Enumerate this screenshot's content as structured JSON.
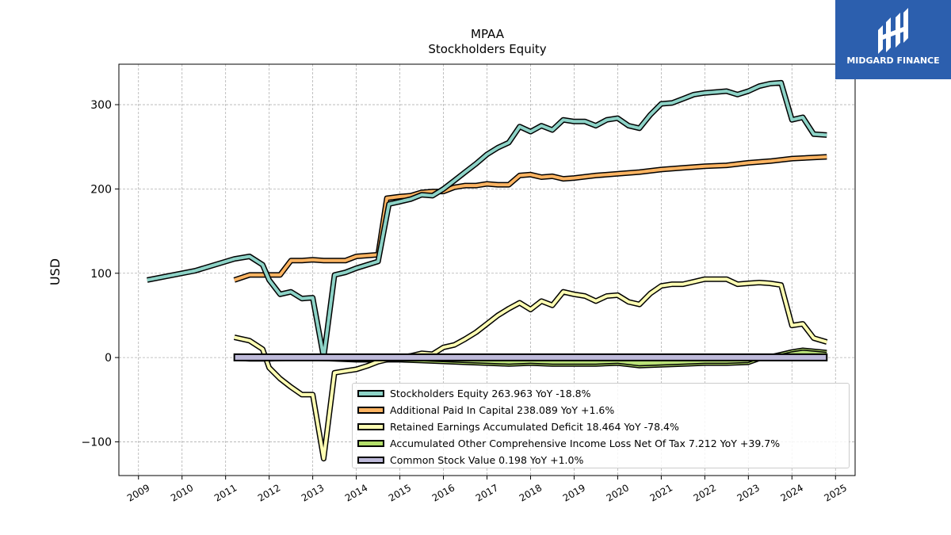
{
  "chart_data": {
    "type": "line",
    "title": "MPAA",
    "subtitle": "Stockholders  Equity",
    "ylabel": "USD",
    "xlabel": "",
    "xlim": [
      2008.55,
      2025.45
    ],
    "ylim": [
      -140,
      348
    ],
    "x_ticks": [
      "2009",
      "2010",
      "2011",
      "2012",
      "2013",
      "2014",
      "2015",
      "2016",
      "2017",
      "2018",
      "2019",
      "2020",
      "2021",
      "2022",
      "2023",
      "2024",
      "2025"
    ],
    "y_ticks": [
      -100,
      0,
      100,
      200,
      300
    ],
    "y_tick_labels": [
      "−100",
      "0",
      "100",
      "200",
      "300"
    ],
    "grid": true,
    "legend_position": "lower-right",
    "series": [
      {
        "name": "Stockholders Equity  263.963 YoY -18.8%",
        "color": "#8dd3c7",
        "x": [
          2009.2,
          2010.3,
          2011.2,
          2011.55,
          2011.85,
          2012.0,
          2012.25,
          2012.5,
          2012.75,
          2013.0,
          2013.25,
          2013.5,
          2013.75,
          2014.0,
          2014.5,
          2014.75,
          2015.0,
          2015.25,
          2015.5,
          2015.75,
          2016.0,
          2016.25,
          2016.5,
          2016.75,
          2017.0,
          2017.25,
          2017.5,
          2017.75,
          2018.0,
          2018.25,
          2018.5,
          2018.75,
          2019.0,
          2019.25,
          2019.5,
          2019.75,
          2020.0,
          2020.25,
          2020.5,
          2020.75,
          2021.0,
          2021.25,
          2021.5,
          2021.75,
          2022.0,
          2022.25,
          2022.5,
          2022.75,
          2023.0,
          2023.25,
          2023.5,
          2023.75,
          2024.0,
          2024.25,
          2024.5,
          2024.8
        ],
        "y": [
          92,
          103,
          117,
          120,
          110,
          92,
          75,
          78,
          70,
          71,
          0,
          98,
          101,
          106,
          114,
          182,
          185,
          188,
          193,
          192,
          200,
          210,
          220,
          230,
          241,
          249,
          255,
          274,
          268,
          275,
          270,
          282,
          280,
          280,
          275,
          282,
          284,
          275,
          272,
          288,
          301,
          302,
          307,
          312,
          314,
          315,
          316,
          312,
          316,
          322,
          325,
          326,
          282,
          285,
          265,
          263.963
        ]
      },
      {
        "name": "Additional Paid In Capital  238.089 YoY +1.6%",
        "color": "#fdb462",
        "x": [
          2011.2,
          2011.55,
          2012.25,
          2012.5,
          2012.75,
          2013.0,
          2013.25,
          2013.5,
          2013.75,
          2014.0,
          2014.5,
          2014.7,
          2015.0,
          2015.25,
          2015.5,
          2015.75,
          2016.0,
          2016.25,
          2016.5,
          2016.75,
          2017.0,
          2017.25,
          2017.5,
          2017.75,
          2018.0,
          2018.25,
          2018.5,
          2018.75,
          2019.0,
          2019.5,
          2020.0,
          2020.5,
          2021.0,
          2021.5,
          2022.0,
          2022.5,
          2023.0,
          2023.5,
          2024.0,
          2024.8
        ],
        "y": [
          92,
          98,
          98,
          115,
          115,
          116,
          115,
          115,
          115,
          120,
          122,
          189,
          191,
          192,
          196,
          197,
          197,
          202,
          204,
          204,
          206,
          205,
          205,
          216,
          217,
          214,
          215,
          212,
          213,
          216,
          218,
          220,
          223,
          225,
          227,
          228,
          231,
          233,
          236,
          238.089
        ]
      },
      {
        "name": "Retained Earnings Accumulated Deficit  18.464 YoY -78.4%",
        "color": "#ffffb3",
        "x": [
          2011.2,
          2011.55,
          2011.85,
          2012.0,
          2012.25,
          2012.5,
          2012.75,
          2013.0,
          2013.25,
          2013.5,
          2013.75,
          2014.0,
          2014.25,
          2014.5,
          2014.75,
          2015.0,
          2015.25,
          2015.5,
          2015.75,
          2016.0,
          2016.25,
          2016.5,
          2016.75,
          2017.0,
          2017.25,
          2017.5,
          2017.75,
          2018.0,
          2018.25,
          2018.5,
          2018.75,
          2019.0,
          2019.25,
          2019.5,
          2019.75,
          2020.0,
          2020.25,
          2020.5,
          2020.75,
          2021.0,
          2021.25,
          2021.5,
          2021.75,
          2022.0,
          2022.25,
          2022.5,
          2022.75,
          2023.0,
          2023.25,
          2023.5,
          2023.75,
          2024.0,
          2024.25,
          2024.5,
          2024.8
        ],
        "y": [
          24,
          20,
          10,
          -12,
          -25,
          -35,
          -44,
          -44,
          -120,
          -18,
          -16,
          -14,
          -10,
          -5,
          -2,
          0,
          2,
          5,
          4,
          12,
          15,
          22,
          30,
          40,
          50,
          58,
          65,
          57,
          67,
          62,
          78,
          75,
          73,
          67,
          73,
          74,
          66,
          63,
          76,
          85,
          87,
          87,
          90,
          93,
          93,
          93,
          87,
          88,
          89,
          88,
          86,
          38,
          40,
          23,
          18.464
        ]
      },
      {
        "name": "Accumulated Other Comprehensive Income Loss Net Of Tax  7.212 YoY +39.7%",
        "color": "#b3de69",
        "x": [
          2011.2,
          2011.55,
          2012.0,
          2012.5,
          2013.0,
          2013.5,
          2014.0,
          2014.5,
          2015.0,
          2015.5,
          2016.0,
          2016.5,
          2017.0,
          2017.5,
          2018.0,
          2018.5,
          2019.0,
          2019.5,
          2020.0,
          2020.5,
          2021.0,
          2021.5,
          2022.0,
          2022.5,
          2023.0,
          2023.5,
          2023.75,
          2024.0,
          2024.25,
          2024.8
        ],
        "y": [
          -2,
          -3,
          -3,
          -2,
          -2,
          -3,
          -4,
          -4,
          -4,
          -5,
          -6,
          -7,
          -8,
          -9,
          -8,
          -9,
          -9,
          -9,
          -8,
          -11,
          -10,
          -9,
          -8,
          -8,
          -7,
          2,
          5,
          8,
          10,
          7.212
        ]
      },
      {
        "name": "Common Stock Value  0.198 YoY +1.0%",
        "color": "#bebada",
        "x": [
          2011.2,
          2024.8
        ],
        "y": [
          0.196,
          0.198
        ]
      }
    ]
  },
  "logo": {
    "text": "MIDGARD FINANCE"
  }
}
